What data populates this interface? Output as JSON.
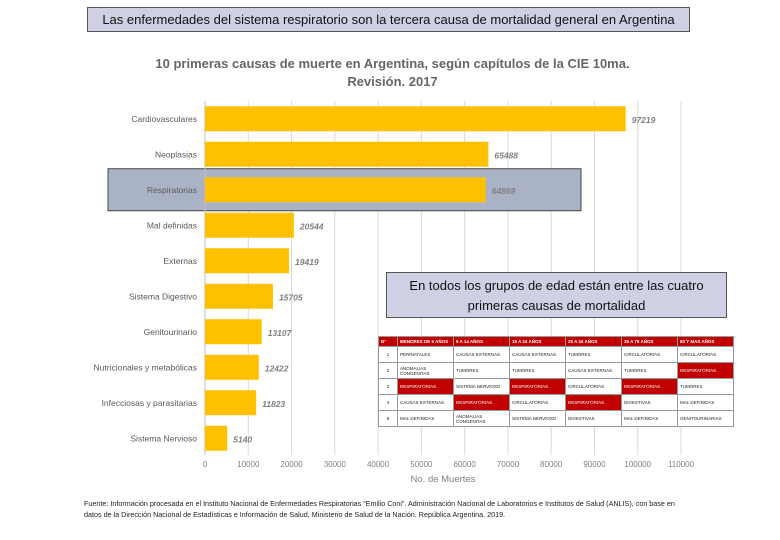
{
  "banner": "Las enfermedades del sistema respiratorio son la tercera causa de mortalidad general en Argentina",
  "colors": {
    "bar": "#ffc000",
    "highlight_box": "#aab3c6",
    "label_color": "#808080",
    "table_header": "#c00000"
  },
  "chart_data": {
    "type": "bar",
    "orientation": "horizontal",
    "title": "10 primeras causas de muerte en Argentina, según capítulos de la CIE 10ma. Revisión. 2017",
    "title_line1": "10 primeras causas de muerte en Argentina, según capítulos de la CIE 10ma.",
    "title_line2": "Revisión. 2017",
    "categories": [
      "Cardiovasculares",
      "Neoplasias",
      "Respiratorias",
      "Mal definidas",
      "Externas",
      "Sistema Digestivo",
      "Genitourinario",
      "Nutricionales y metabólicas",
      "Infecciosas y parasitarias",
      "Sistema Nervioso"
    ],
    "values": [
      97219,
      65488,
      64869,
      20544,
      19419,
      15705,
      13107,
      12422,
      11823,
      5140
    ],
    "highlighted_category": "Respiratorias",
    "xlabel": "No. de Muertes",
    "xlim": [
      0,
      110000
    ],
    "xticks": [
      0,
      10000,
      20000,
      30000,
      40000,
      50000,
      60000,
      70000,
      80000,
      90000,
      100000,
      110000
    ],
    "xtick_labels": [
      "0",
      "10000",
      "20000",
      "30000",
      "40000",
      "50000",
      "60000",
      "70000",
      "80000",
      "90000",
      "100000",
      "110000"
    ]
  },
  "note": "En todos los grupos de edad están entre las cuatro primeras causas de mortalidad",
  "age_table": {
    "headers": [
      "N°",
      "MENORES DE 5 AÑOS",
      "5 A 14 AÑOS",
      "15 A 24 AÑOS",
      "25 A 34 AÑOS",
      "35 A 79 AÑOS",
      "80 Y MAS AÑOS"
    ],
    "rows": [
      {
        "rank": "1",
        "cells": [
          {
            "text": "PERINATALES",
            "hl": false
          },
          {
            "text": "CAUSAS EXTERNAS",
            "hl": false
          },
          {
            "text": "CAUSAS EXTERNAS",
            "hl": false
          },
          {
            "text": "TUMORES",
            "hl": false
          },
          {
            "text": "CIRCULATORIAS",
            "hl": false
          },
          {
            "text": "CIRCULATORIAS",
            "hl": false
          }
        ]
      },
      {
        "rank": "2",
        "cells": [
          {
            "text": "ANOMALIAS CONGENITAS",
            "hl": false
          },
          {
            "text": "TUMORES",
            "hl": false
          },
          {
            "text": "TUMORES",
            "hl": false
          },
          {
            "text": "CAUSAS EXTERNAS",
            "hl": false
          },
          {
            "text": "TUMORES",
            "hl": false
          },
          {
            "text": "RESPIRATORIAS",
            "hl": true
          }
        ]
      },
      {
        "rank": "3",
        "cells": [
          {
            "text": "RESPIRATORIAS",
            "hl": true
          },
          {
            "text": "SISTEMA NERVIOSO",
            "hl": false
          },
          {
            "text": "RESPIRATORIAS",
            "hl": true
          },
          {
            "text": "CIRCULATORIAS",
            "hl": false
          },
          {
            "text": "RESPIRATORIAS",
            "hl": true
          },
          {
            "text": "TUMORES",
            "hl": false
          }
        ]
      },
      {
        "rank": "4",
        "cells": [
          {
            "text": "CAUSAS EXTERNAS",
            "hl": false
          },
          {
            "text": "RESPIRATORIAS",
            "hl": true
          },
          {
            "text": "CIRCULATORIAS",
            "hl": false
          },
          {
            "text": "RESPIRATORIAS",
            "hl": true
          },
          {
            "text": "DIGESTIVAS",
            "hl": false
          },
          {
            "text": "MAL DEFINIDAS",
            "hl": false
          }
        ]
      },
      {
        "rank": "5",
        "cells": [
          {
            "text": "MAL DEFINIDAS",
            "hl": false
          },
          {
            "text": "ANOMALIAS CONGENITAS",
            "hl": false
          },
          {
            "text": "SISTEMA NERVIOSO",
            "hl": false
          },
          {
            "text": "DIGESTIVAS",
            "hl": false
          },
          {
            "text": "MAL DEFINIDAS",
            "hl": false
          },
          {
            "text": "GENITOURINARIAS",
            "hl": false
          }
        ]
      }
    ]
  },
  "source": "Fuente: Información procesada en el Instituto Nacional de Enfermedades Respiratorias “Emilio Coni”. Administración Nacional de Laboratorios e Institutos de Salud (ANLIS), con base en datos de la Dirección Nacional de Estadísticas e Información de Salud, Ministerio de Salud de la Nación. República Argentina. 2019."
}
